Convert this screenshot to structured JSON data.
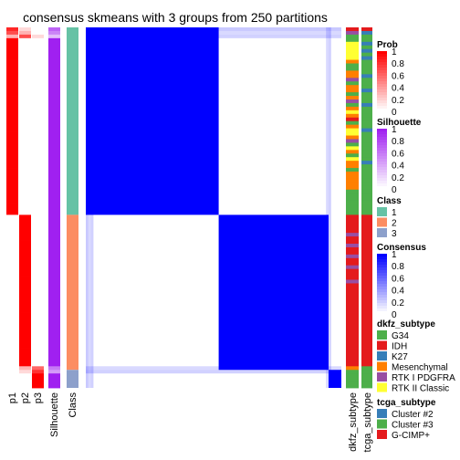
{
  "chart_data": {
    "type": "heatmap",
    "title": "consensus skmeans with 3 groups from 250 partitions",
    "column_labels": [
      "p1",
      "p2",
      "p3",
      "Silhouette",
      "Class"
    ],
    "annotation_labels": [
      "dkfz_subtype",
      "tcga_subtype"
    ],
    "n_samples": 100,
    "group_blocks": [
      {
        "class": "1",
        "start": 0,
        "end": 52
      },
      {
        "class": "2",
        "start": 52,
        "end": 95
      },
      {
        "class": "3",
        "start": 95,
        "end": 100
      }
    ],
    "prob_columns": {
      "p1": [
        0.85,
        0.7,
        0.3,
        1,
        1,
        1,
        1,
        1,
        1,
        1,
        1,
        1,
        1,
        1,
        1,
        1,
        1,
        1,
        1,
        1,
        1,
        1,
        1,
        1,
        1,
        1,
        1,
        1,
        1,
        1,
        1,
        1,
        1,
        1,
        1,
        1,
        1,
        1,
        1,
        1,
        1,
        1,
        1,
        1,
        1,
        1,
        1,
        1,
        1,
        1,
        1,
        1,
        0,
        0,
        0,
        0,
        0,
        0,
        0,
        0,
        0,
        0,
        0,
        0,
        0,
        0,
        0,
        0,
        0,
        0,
        0,
        0,
        0,
        0,
        0,
        0,
        0,
        0,
        0,
        0,
        0,
        0,
        0,
        0,
        0,
        0,
        0,
        0,
        0,
        0,
        0,
        0,
        0,
        0,
        0,
        0,
        0,
        0,
        0,
        0
      ],
      "p2": [
        0.15,
        0.3,
        0.7,
        0,
        0,
        0,
        0,
        0,
        0,
        0,
        0,
        0,
        0,
        0,
        0,
        0,
        0,
        0,
        0,
        0,
        0,
        0,
        0,
        0,
        0,
        0,
        0,
        0,
        0,
        0,
        0,
        0,
        0,
        0,
        0,
        0,
        0,
        0,
        0,
        0,
        0,
        0,
        0,
        0,
        0,
        0,
        0,
        0,
        0,
        0,
        0,
        0,
        1,
        1,
        1,
        1,
        1,
        1,
        1,
        1,
        1,
        1,
        1,
        1,
        1,
        1,
        1,
        1,
        1,
        1,
        1,
        1,
        1,
        1,
        1,
        1,
        1,
        1,
        1,
        1,
        1,
        1,
        1,
        1,
        1,
        1,
        1,
        1,
        1,
        1,
        1,
        1,
        1,
        1,
        0.3,
        0.15,
        0,
        0,
        0,
        0
      ],
      "p3": [
        0,
        0,
        0.15,
        0,
        0,
        0,
        0,
        0,
        0,
        0,
        0,
        0,
        0,
        0,
        0,
        0,
        0,
        0,
        0,
        0,
        0,
        0,
        0,
        0,
        0,
        0,
        0,
        0,
        0,
        0,
        0,
        0,
        0,
        0,
        0,
        0,
        0,
        0,
        0,
        0,
        0,
        0,
        0,
        0,
        0,
        0,
        0,
        0,
        0,
        0,
        0,
        0,
        0,
        0,
        0,
        0,
        0,
        0,
        0,
        0,
        0,
        0,
        0,
        0,
        0,
        0,
        0,
        0,
        0,
        0,
        0,
        0,
        0,
        0,
        0,
        0,
        0,
        0,
        0,
        0,
        0,
        0,
        0,
        0,
        0,
        0,
        0,
        0,
        0,
        0,
        0,
        0,
        0,
        0,
        0.6,
        0.8,
        1,
        1,
        1,
        1
      ]
    },
    "silhouette": [
      0.7,
      0.55,
      0.3,
      1,
      1,
      1,
      1,
      1,
      1,
      1,
      1,
      1,
      1,
      1,
      1,
      1,
      1,
      1,
      1,
      1,
      1,
      1,
      1,
      1,
      1,
      1,
      1,
      1,
      1,
      1,
      1,
      1,
      1,
      1,
      1,
      1,
      1,
      1,
      1,
      1,
      1,
      1,
      1,
      1,
      1,
      1,
      1,
      1,
      1,
      1,
      1,
      1,
      1,
      1,
      1,
      1,
      1,
      1,
      1,
      1,
      1,
      1,
      1,
      1,
      1,
      1,
      1,
      1,
      1,
      1,
      1,
      1,
      1,
      1,
      1,
      1,
      1,
      1,
      1,
      1,
      1,
      1,
      1,
      1,
      1,
      1,
      1,
      1,
      1,
      1,
      1,
      1,
      1,
      1,
      0.6,
      0.45,
      1,
      1,
      1,
      1
    ],
    "class_colors": {
      "1": "#66C2A5",
      "2": "#FC8D62",
      "3": "#8DA0CB"
    },
    "colors": {
      "prob_high": "#FF0000",
      "prob_low": "#FFFFFF",
      "silhouette_high": "#A020F0",
      "consensus_high": "#0000FF",
      "dkfz": {
        "G34": "#4DAF4A",
        "IDH": "#E41A1C",
        "K27": "#377EB8",
        "Mesenchymal": "#FF7F00",
        "RTK I PDGFRA": "#984EA3",
        "RTK II Classic": "#FFFF33"
      },
      "tcga": {
        "Cluster #2": "#377EB8",
        "Cluster #3": "#4DAF4A",
        "G-CIMP+": "#E41A1C"
      }
    },
    "dkfz_subtype_per_sample": [
      "IDH",
      "RTK I PDGFRA",
      "G34",
      "G34",
      "RTK II Classic",
      "RTK II Classic",
      "RTK II Classic",
      "RTK II Classic",
      "RTK II Classic",
      "Mesenchymal",
      "G34",
      "G34",
      "Mesenchymal",
      "Mesenchymal",
      "RTK I PDGFRA",
      "G34",
      "Mesenchymal",
      "Mesenchymal",
      "G34",
      "Mesenchymal",
      "RTK I PDGFRA",
      "G34",
      "Mesenchymal",
      "RTK II Classic",
      "Mesenchymal",
      "IDH",
      "G34",
      "Mesenchymal",
      "RTK II Classic",
      "RTK II Classic",
      "Mesenchymal",
      "RTK I PDGFRA",
      "G34",
      "RTK II Classic",
      "Mesenchymal",
      "G34",
      "RTK II Classic",
      "Mesenchymal",
      "Mesenchymal",
      "G34",
      "Mesenchymal",
      "Mesenchymal",
      "Mesenchymal",
      "Mesenchymal",
      "Mesenchymal",
      "G34",
      "G34",
      "G34",
      "G34",
      "G34",
      "G34",
      "G34",
      "IDH",
      "IDH",
      "IDH",
      "IDH",
      "IDH",
      "RTK I PDGFRA",
      "IDH",
      "IDH",
      "RTK I PDGFRA",
      "IDH",
      "IDH",
      "RTK I PDGFRA",
      "IDH",
      "IDH",
      "RTK I PDGFRA",
      "IDH",
      "IDH",
      "IDH",
      "RTK I PDGFRA",
      "IDH",
      "IDH",
      "IDH",
      "IDH",
      "IDH",
      "IDH",
      "IDH",
      "IDH",
      "IDH",
      "IDH",
      "IDH",
      "IDH",
      "IDH",
      "IDH",
      "IDH",
      "IDH",
      "IDH",
      "IDH",
      "IDH",
      "IDH",
      "IDH",
      "IDH",
      "IDH",
      "Mesenchymal",
      "G34",
      "G34",
      "G34",
      "G34",
      "G34"
    ],
    "tcga_subtype_per_sample": [
      "G-CIMP+",
      "Cluster #2",
      "Cluster #3",
      "Cluster #3",
      "Cluster #2",
      "Cluster #3",
      "Cluster #2",
      "Cluster #3",
      "Cluster #2",
      "Cluster #3",
      "Cluster #3",
      "Cluster #3",
      "Cluster #3",
      "Cluster #2",
      "Cluster #3",
      "Cluster #3",
      "Cluster #3",
      "Cluster #2",
      "Cluster #3",
      "Cluster #3",
      "Cluster #3",
      "Cluster #2",
      "Cluster #3",
      "Cluster #3",
      "Cluster #3",
      "Cluster #3",
      "Cluster #3",
      "Cluster #3",
      "Cluster #2",
      "Cluster #3",
      "Cluster #3",
      "Cluster #3",
      "Cluster #3",
      "Cluster #3",
      "Cluster #3",
      "Cluster #3",
      "Cluster #3",
      "Cluster #2",
      "Cluster #3",
      "Cluster #3",
      "Cluster #3",
      "Cluster #3",
      "Cluster #3",
      "Cluster #3",
      "Cluster #3",
      "Cluster #3",
      "Cluster #3",
      "Cluster #3",
      "Cluster #3",
      "Cluster #3",
      "Cluster #3",
      "Cluster #3",
      "G-CIMP+",
      "G-CIMP+",
      "G-CIMP+",
      "G-CIMP+",
      "G-CIMP+",
      "G-CIMP+",
      "G-CIMP+",
      "G-CIMP+",
      "G-CIMP+",
      "G-CIMP+",
      "G-CIMP+",
      "G-CIMP+",
      "G-CIMP+",
      "G-CIMP+",
      "G-CIMP+",
      "G-CIMP+",
      "G-CIMP+",
      "G-CIMP+",
      "G-CIMP+",
      "G-CIMP+",
      "G-CIMP+",
      "G-CIMP+",
      "G-CIMP+",
      "G-CIMP+",
      "G-CIMP+",
      "G-CIMP+",
      "G-CIMP+",
      "G-CIMP+",
      "G-CIMP+",
      "G-CIMP+",
      "G-CIMP+",
      "G-CIMP+",
      "G-CIMP+",
      "G-CIMP+",
      "G-CIMP+",
      "G-CIMP+",
      "G-CIMP+",
      "G-CIMP+",
      "G-CIMP+",
      "G-CIMP+",
      "G-CIMP+",
      "G-CIMP+",
      "Cluster #3",
      "Cluster #3",
      "Cluster #3",
      "Cluster #3",
      "Cluster #3",
      "Cluster #3"
    ],
    "legends": {
      "prob": {
        "title": "Prob",
        "ticks": [
          "1",
          "0.8",
          "0.6",
          "0.4",
          "0.2",
          "0"
        ]
      },
      "silhouette": {
        "title": "Silhouette",
        "ticks": [
          "1",
          "0.8",
          "0.6",
          "0.4",
          "0.2",
          "0"
        ]
      },
      "class": {
        "title": "Class",
        "items": [
          "1",
          "2",
          "3"
        ]
      },
      "consensus": {
        "title": "Consensus",
        "ticks": [
          "1",
          "0.8",
          "0.6",
          "0.4",
          "0.2",
          "0"
        ]
      },
      "dkfz_subtype": {
        "title": "dkfz_subtype",
        "items": [
          "G34",
          "IDH",
          "K27",
          "Mesenchymal",
          "RTK I PDGFRA",
          "RTK II Classic"
        ]
      },
      "tcga_subtype": {
        "title": "tcga_subtype",
        "items": [
          "Cluster #2",
          "Cluster #3",
          "G-CIMP+"
        ]
      }
    }
  }
}
